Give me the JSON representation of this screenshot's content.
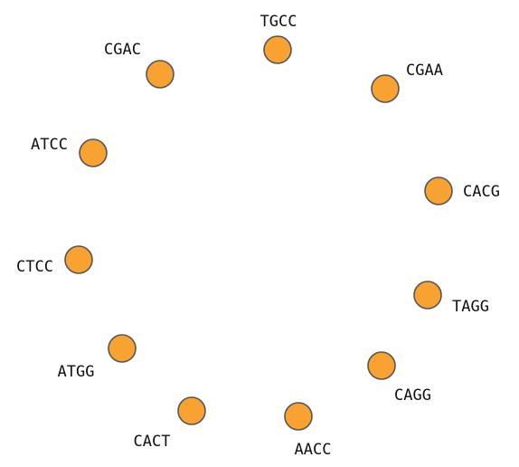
{
  "diagram": {
    "node_fill": "#f8a231",
    "node_stroke": "#555555",
    "nodes": [
      {
        "label": "TGCC"
      },
      {
        "label": "CGAA"
      },
      {
        "label": "CACG"
      },
      {
        "label": "TAGG"
      },
      {
        "label": "CAGG"
      },
      {
        "label": "AACC"
      },
      {
        "label": "CACT"
      },
      {
        "label": "ATGG"
      },
      {
        "label": "CTCC"
      },
      {
        "label": "ATCC"
      },
      {
        "label": "CGAC"
      }
    ]
  }
}
